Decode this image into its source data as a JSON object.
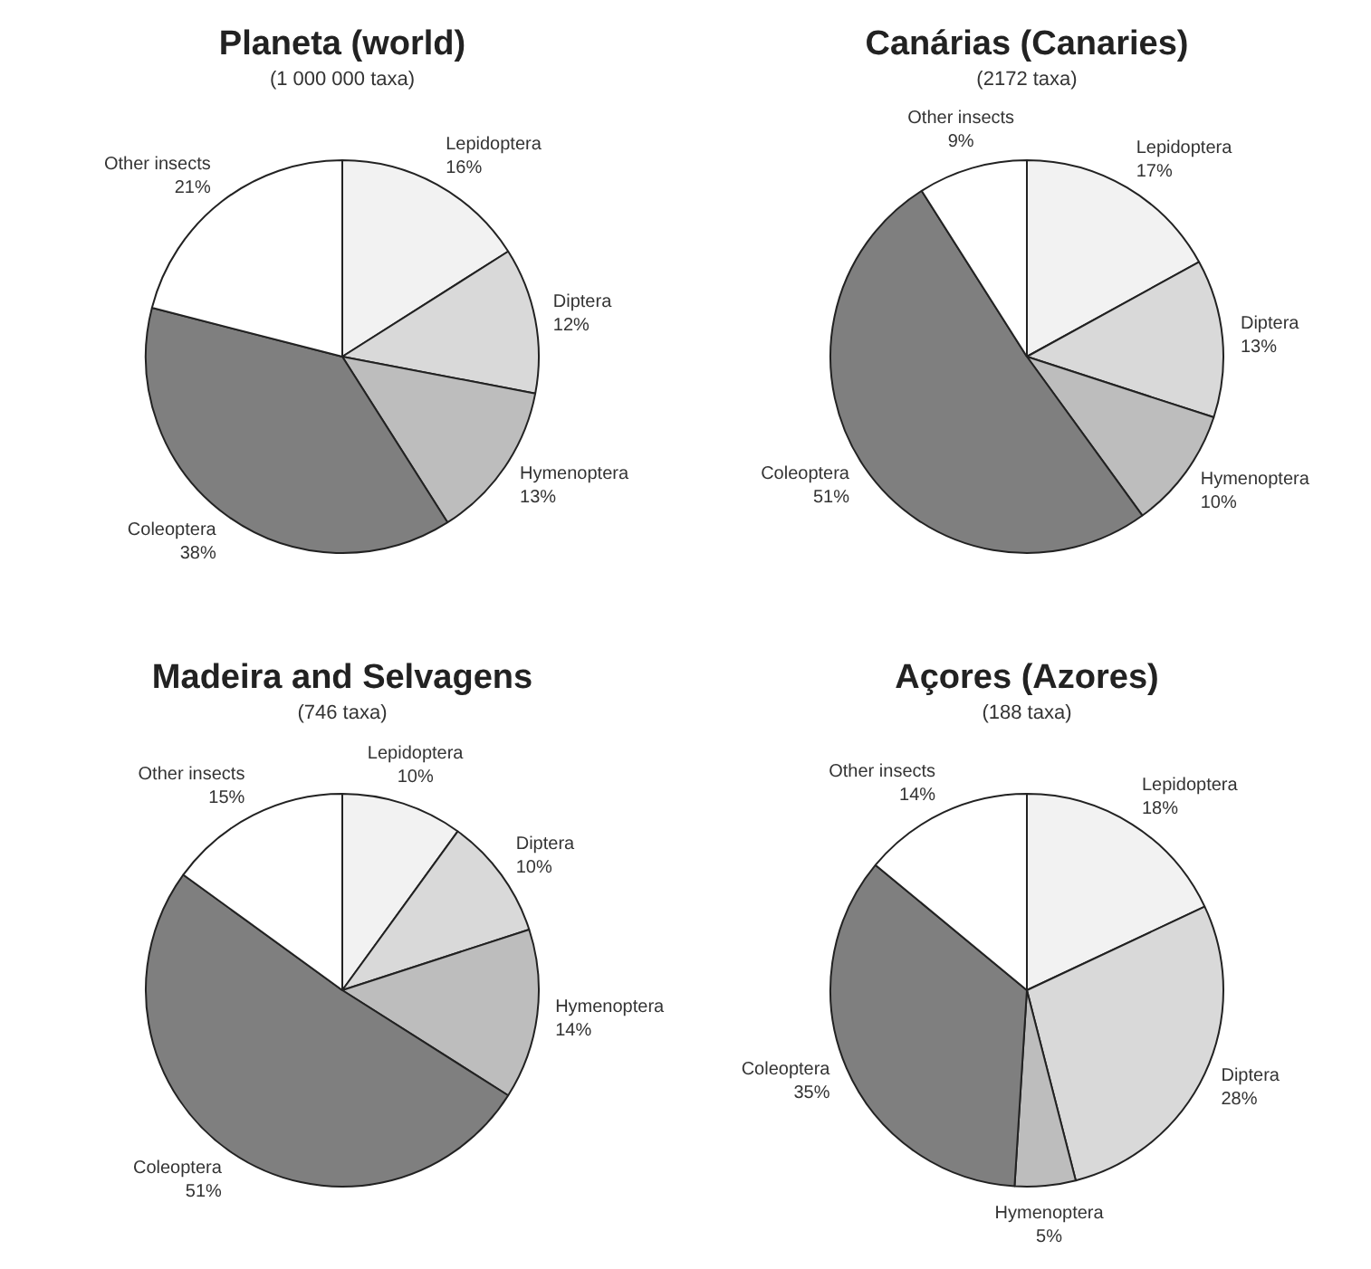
{
  "chart_data": [
    {
      "type": "pie",
      "title": "Planeta (world)",
      "subtitle": "(1 000 000 taxa)",
      "categories": [
        "Lepidoptera",
        "Diptera",
        "Hymenoptera",
        "Coleoptera",
        "Other insects"
      ],
      "values": [
        16,
        12,
        13,
        38,
        21
      ],
      "value_labels": [
        "16%",
        "12%",
        "13%",
        "38%",
        "21%"
      ],
      "colors": [
        "#f2f2f2",
        "#d9d9d9",
        "#bdbdbd",
        "#7f7f7f",
        "#ffffff"
      ]
    },
    {
      "type": "pie",
      "title": "Canárias (Canaries)",
      "subtitle": "(2172 taxa)",
      "categories": [
        "Lepidoptera",
        "Diptera",
        "Hymenoptera",
        "Coleoptera",
        "Other insects"
      ],
      "values": [
        17,
        13,
        10,
        51,
        9
      ],
      "value_labels": [
        "17%",
        "13%",
        "10%",
        "51%",
        "9%"
      ],
      "colors": [
        "#f2f2f2",
        "#d9d9d9",
        "#bdbdbd",
        "#7f7f7f",
        "#ffffff"
      ]
    },
    {
      "type": "pie",
      "title": "Madeira and Selvagens",
      "subtitle": "(746 taxa)",
      "categories": [
        "Lepidoptera",
        "Diptera",
        "Hymenoptera",
        "Coleoptera",
        "Other insects"
      ],
      "values": [
        10,
        10,
        14,
        51,
        15
      ],
      "value_labels": [
        "10%",
        "10%",
        "14%",
        "51%",
        "15%"
      ],
      "colors": [
        "#f2f2f2",
        "#d9d9d9",
        "#bdbdbd",
        "#7f7f7f",
        "#ffffff"
      ]
    },
    {
      "type": "pie",
      "title": "Açores (Azores)",
      "subtitle": "(188 taxa)",
      "categories": [
        "Lepidoptera",
        "Diptera",
        "Hymenoptera",
        "Coleoptera",
        "Other insects"
      ],
      "values": [
        18,
        28,
        5,
        35,
        14
      ],
      "value_labels": [
        "18%",
        "28%",
        "5%",
        "35%",
        "14%"
      ],
      "colors": [
        "#f2f2f2",
        "#d9d9d9",
        "#bdbdbd",
        "#7f7f7f",
        "#ffffff"
      ]
    }
  ]
}
